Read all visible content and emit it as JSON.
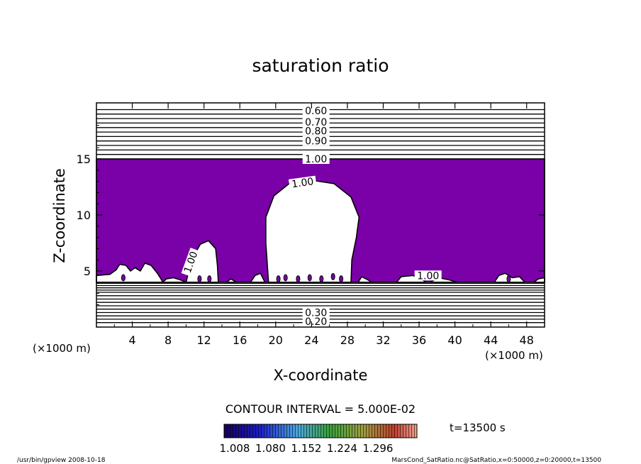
{
  "chart_data": {
    "type": "contour",
    "title": "saturation ratio",
    "xlabel": "X-coordinate",
    "ylabel": "Z-coordinate",
    "x_unit": "(×1000 m)",
    "y_unit": "(×1000 m)",
    "xlim": [
      0,
      50
    ],
    "ylim": [
      0,
      20
    ],
    "x_ticks": [
      4,
      8,
      12,
      16,
      20,
      24,
      28,
      32,
      36,
      40,
      44,
      48
    ],
    "y_ticks": [
      5,
      10,
      15
    ],
    "contour_interval_text": "CONTOUR INTERVAL = 5.000E-02",
    "upper_contour_labels": [
      {
        "label": "0.60",
        "z": 19.3
      },
      {
        "label": "0.70",
        "z": 18.3
      },
      {
        "label": "0.80",
        "z": 17.5
      },
      {
        "label": "0.90",
        "z": 16.6
      },
      {
        "label": "1.00",
        "z": 15.0
      }
    ],
    "lower_contour_labels": [
      {
        "label": "0.20",
        "z": 0.5
      },
      {
        "label": "0.30",
        "z": 1.3
      }
    ],
    "supersaturated_region": {
      "z_min": 4.0,
      "z_max": 15.0,
      "value_range": [
        1.008,
        1.296
      ]
    },
    "inner_contour_labels": [
      {
        "label": "1.00",
        "x": 23.0,
        "z": 12.9
      },
      {
        "label": "1.00",
        "x": 10.5,
        "z": 5.8
      },
      {
        "label": "1.00",
        "x": 37.0,
        "z": 4.6
      }
    ],
    "colorbar": {
      "tick_labels": [
        "1.008",
        "1.080",
        "1.152",
        "1.224",
        "1.296"
      ],
      "fill_color": "#7a00a8"
    },
    "time_label": "t=13500 s",
    "footer_left": "/usr/bin/gpview   2008-10-18",
    "footer_right": "MarsCond_SatRatio.nc@SatRatio,x=0:50000,z=0:20000,t=13500"
  }
}
